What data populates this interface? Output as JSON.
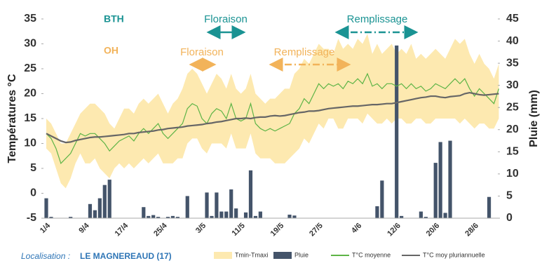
{
  "chart_data": {
    "type": "line",
    "y_label": "Températures °C",
    "y2_label": "Pluie (mm)",
    "categories": [
      "1/4",
      null,
      null,
      null,
      null,
      null,
      null,
      null,
      "9/4",
      null,
      null,
      null,
      null,
      null,
      null,
      null,
      "17/4",
      null,
      null,
      null,
      null,
      null,
      null,
      null,
      "25/4",
      null,
      null,
      null,
      null,
      null,
      null,
      null,
      "3/5",
      null,
      null,
      null,
      null,
      null,
      null,
      null,
      "11/5",
      null,
      null,
      null,
      null,
      null,
      null,
      null,
      "19/5",
      null,
      null,
      null,
      null,
      null,
      null,
      null,
      "27/5",
      null,
      null,
      null,
      null,
      null,
      null,
      null,
      "4/6",
      null,
      null,
      null,
      null,
      null,
      null,
      null,
      "12/6",
      null,
      null,
      null,
      null,
      null,
      null,
      null,
      "20/6",
      null,
      null,
      null,
      null,
      null,
      null,
      null,
      "28/6",
      null,
      null,
      null,
      null,
      null
    ],
    "ylim": [
      -5,
      35
    ],
    "yticks": [
      -5,
      0,
      5,
      10,
      15,
      20,
      25,
      30,
      35
    ],
    "y2lim": [
      0,
      45
    ],
    "y2ticks": [
      0,
      5,
      10,
      15,
      20,
      25,
      30,
      35,
      40,
      45
    ],
    "series": [
      {
        "name": "Tmin-Tmaxi",
        "type": "band",
        "color": "#fde9b0",
        "values": [
          15,
          14,
          12,
          10,
          10,
          12,
          14,
          16,
          17,
          18,
          18,
          17,
          16,
          14,
          13,
          15,
          17,
          17,
          16,
          18,
          19,
          18,
          19,
          20,
          18,
          16,
          18,
          19,
          21,
          24,
          25,
          24,
          22,
          20,
          22,
          24,
          23,
          21,
          24,
          21,
          20,
          21,
          24,
          20,
          19,
          18,
          19,
          19,
          20,
          21,
          21,
          24,
          25,
          27,
          26,
          28,
          30,
          29,
          29,
          28,
          31,
          29,
          30,
          29,
          31,
          30,
          32,
          28,
          30,
          28,
          29,
          30,
          28,
          29,
          28,
          30,
          27,
          28,
          27,
          28,
          29,
          28,
          27,
          29,
          31,
          30,
          31,
          28,
          26,
          28,
          26,
          25,
          23,
          26
        ],
        "low": [
          9,
          8,
          5,
          2,
          1,
          3,
          6,
          8,
          6,
          6,
          7,
          5,
          4,
          3,
          5,
          6,
          5,
          6,
          5,
          6,
          7,
          6,
          7,
          8,
          6,
          6,
          6,
          7,
          7,
          10,
          11,
          11,
          9,
          8,
          10,
          10,
          10,
          9,
          12,
          9,
          9,
          9,
          12,
          8,
          7,
          7,
          7,
          6,
          6,
          6,
          7,
          8,
          9,
          11,
          10,
          12,
          14,
          13,
          15,
          15,
          13,
          13,
          15,
          15,
          15,
          14,
          16,
          15,
          14,
          14,
          15,
          14,
          15,
          15,
          14,
          14,
          15,
          15,
          14,
          14,
          15,
          15,
          15,
          15,
          15,
          14,
          15,
          14,
          13,
          14,
          14,
          13,
          13,
          15
        ]
      },
      {
        "name": "Pluie",
        "type": "bar",
        "axis": "y2",
        "color": "#44546a",
        "values": [
          4.5,
          0.3,
          0,
          0,
          0,
          0.3,
          0,
          0,
          0,
          3.2,
          1.8,
          4.5,
          7.5,
          8.7,
          0,
          0,
          0,
          0,
          0,
          0,
          2.5,
          0.5,
          0.7,
          0.3,
          0,
          0.3,
          0.5,
          0.3,
          0,
          5,
          0,
          0,
          0,
          5.8,
          0.5,
          5.8,
          1.5,
          1.5,
          6.5,
          2.2,
          0,
          1.3,
          10.8,
          0.5,
          1.5,
          0,
          0,
          0,
          0,
          0,
          0.8,
          0.6,
          0,
          0,
          0,
          0,
          0,
          0,
          0,
          0,
          0,
          0,
          0,
          0,
          0,
          0,
          0,
          0,
          2.7,
          8.5,
          0,
          0,
          39,
          0.5,
          0,
          0,
          0,
          1.5,
          0.3,
          0,
          12.5,
          17.2,
          1.2,
          17.5,
          0,
          0,
          0,
          0,
          0,
          0,
          0,
          4.8,
          0,
          0
        ]
      },
      {
        "name": "T°C moyenne",
        "type": "line",
        "color": "#5db446",
        "values": [
          12,
          11,
          9,
          6,
          7,
          8,
          10,
          12,
          11.5,
          12,
          12,
          11,
          10,
          8.5,
          9.5,
          10.5,
          11,
          11.5,
          10.5,
          12,
          13,
          12,
          13,
          14,
          12,
          11,
          12,
          13,
          14,
          17,
          18,
          17.5,
          15,
          14,
          16,
          17,
          16.5,
          15,
          18,
          15,
          14.5,
          15,
          18,
          14,
          13,
          12.5,
          13,
          12.5,
          13,
          13.5,
          14,
          16,
          17,
          19,
          18,
          20,
          22,
          21,
          22,
          21.5,
          22,
          21,
          22.5,
          22,
          23,
          22,
          24,
          21.5,
          22,
          21,
          22,
          22,
          21.5,
          22,
          21,
          22,
          21,
          21.5,
          20.5,
          21,
          22,
          21.5,
          21,
          22,
          23,
          22,
          23,
          21,
          19.5,
          21,
          20,
          19,
          18,
          21
        ]
      },
      {
        "name": "T°C moy pluriannuelle",
        "type": "line",
        "color": "#666666",
        "values": [
          12,
          11.5,
          11,
          10.5,
          10.2,
          10.3,
          10.6,
          10.8,
          11,
          11.2,
          11.3,
          11.3,
          11.4,
          11.5,
          11.6,
          11.7,
          11.8,
          12,
          12,
          12.2,
          12.3,
          12.4,
          12.5,
          12.7,
          12.8,
          13,
          13.1,
          13.2,
          13.3,
          13.5,
          13.6,
          13.7,
          13.8,
          14,
          14.1,
          14.3,
          14.4,
          14.6,
          14.8,
          15,
          15,
          15.1,
          15,
          15.2,
          15.3,
          15.3,
          15.5,
          15.6,
          15.5,
          15.6,
          15.8,
          16,
          16.2,
          16.3,
          16.5,
          16.5,
          16.6,
          16.8,
          17,
          17.1,
          17.2,
          17.3,
          17.4,
          17.5,
          17.5,
          17.6,
          17.7,
          17.8,
          17.8,
          17.9,
          18,
          18,
          18.2,
          18.4,
          18.6,
          18.8,
          19,
          19.2,
          19.3,
          19.5,
          19.5,
          19.3,
          19.2,
          19.4,
          19.5,
          19.6,
          20,
          20.2,
          20,
          19.8,
          19.7,
          19.8,
          19.9,
          20
        ]
      }
    ],
    "annotations": [
      {
        "text": "BTH",
        "color": "#1a9393"
      },
      {
        "text": "OH",
        "color": "#f2b35a"
      },
      {
        "text": "Floraison",
        "color": "#1a9393"
      },
      {
        "text": "Remplissage",
        "color": "#1a9393"
      },
      {
        "text": "Floraison",
        "color": "#f2b35a"
      },
      {
        "text": "Remplissage",
        "color": "#f2b35a"
      }
    ],
    "location_label": "Localisation :",
    "location": "LE MAGNEREAUD (17)"
  }
}
